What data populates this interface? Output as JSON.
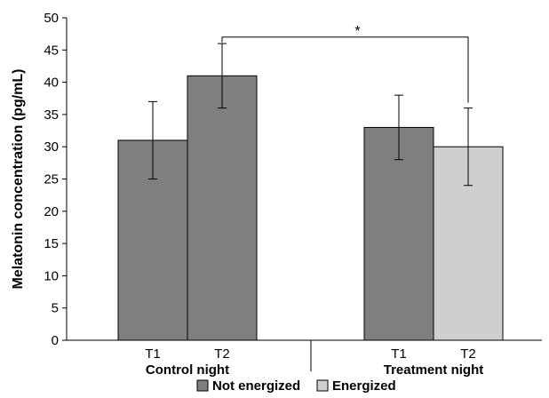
{
  "chart_data": {
    "type": "bar",
    "ylabel": "Melatonin concentration (pg/mL)",
    "ylim": [
      0,
      50
    ],
    "yticks": [
      0,
      5,
      10,
      15,
      20,
      25,
      30,
      35,
      40,
      45,
      50
    ],
    "grid": false,
    "groups": [
      {
        "label": "Control night",
        "bars": [
          {
            "category": "T1",
            "value": 31,
            "error": 6,
            "series": "Not energized"
          },
          {
            "category": "T2",
            "value": 41,
            "error": 5,
            "series": "Not energized"
          }
        ]
      },
      {
        "label": "Treatment night",
        "bars": [
          {
            "category": "T1",
            "value": 33,
            "error": 5,
            "series": "Not energized"
          },
          {
            "category": "T2",
            "value": 30,
            "error": 6,
            "series": "Energized"
          }
        ]
      }
    ],
    "legend": {
      "placement": "bottom",
      "entries": [
        {
          "name": "Not energized",
          "color": "#7f7f7f"
        },
        {
          "name": "Energized",
          "color": "#cfcfcf"
        }
      ]
    },
    "annotations": [
      {
        "text": "*",
        "between": [
          "Control night T2",
          "Treatment night T2"
        ],
        "at_value": 47
      }
    ]
  }
}
